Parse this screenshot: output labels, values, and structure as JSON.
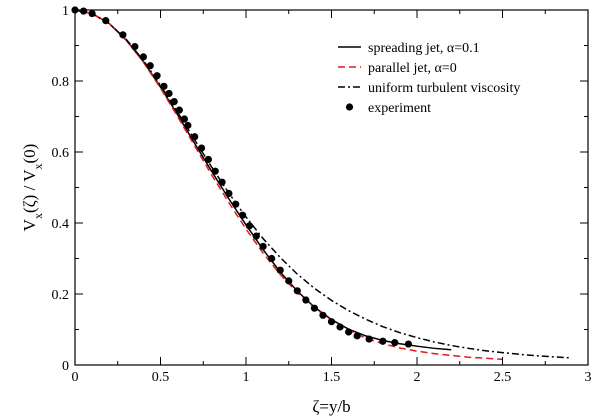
{
  "chart_data": {
    "type": "line",
    "xlabel": "ζ=y/b",
    "ylabel": "V<sub>x</sub>(ζ) / V<sub>x</sub>(0)",
    "xlim": [
      0,
      3
    ],
    "ylim": [
      0,
      1
    ],
    "x_ticks": [
      0,
      0.5,
      1,
      1.5,
      2,
      2.5,
      3
    ],
    "x_tick_labels": [
      "0",
      "0.5",
      "1",
      "1.5",
      "2",
      "2.5",
      "3"
    ],
    "y_ticks": [
      0,
      0.2,
      0.4,
      0.6,
      0.8,
      1
    ],
    "y_tick_labels": [
      "0",
      "0.2",
      "0.4",
      "0.6",
      "0.8",
      "1"
    ],
    "grid": false,
    "legend_position": "top-right",
    "series": [
      {
        "name": "spreading jet, α=0.1",
        "style": "solid",
        "color": "#000000",
        "x": [
          0,
          0.1,
          0.2,
          0.3,
          0.4,
          0.5,
          0.6,
          0.7,
          0.8,
          0.9,
          1.0,
          1.1,
          1.2,
          1.3,
          1.4,
          1.5,
          1.6,
          1.7,
          1.8,
          1.9,
          2.0,
          2.1,
          2.2
        ],
        "y": [
          1.0,
          0.99,
          0.962,
          0.915,
          0.855,
          0.783,
          0.705,
          0.624,
          0.545,
          0.468,
          0.395,
          0.325,
          0.262,
          0.208,
          0.163,
          0.128,
          0.101,
          0.082,
          0.069,
          0.06,
          0.053,
          0.047,
          0.043
        ]
      },
      {
        "name": "parallel jet,    α=0",
        "style": "dashed",
        "color": "#e31a1c",
        "x": [
          0,
          0.1,
          0.2,
          0.3,
          0.4,
          0.5,
          0.6,
          0.7,
          0.8,
          0.9,
          1.0,
          1.1,
          1.2,
          1.3,
          1.4,
          1.5,
          1.6,
          1.7,
          1.8,
          1.9,
          2.0,
          2.1,
          2.2,
          2.3,
          2.4,
          2.5
        ],
        "y": [
          1.0,
          0.99,
          0.962,
          0.915,
          0.853,
          0.78,
          0.7,
          0.617,
          0.535,
          0.457,
          0.383,
          0.315,
          0.255,
          0.204,
          0.161,
          0.126,
          0.098,
          0.076,
          0.06,
          0.048,
          0.039,
          0.032,
          0.027,
          0.022,
          0.019,
          0.016
        ]
      },
      {
        "name": "uniform turbulent viscosity",
        "style": "dash-dot",
        "color": "#000000",
        "x": [
          0,
          0.1,
          0.2,
          0.3,
          0.4,
          0.5,
          0.6,
          0.7,
          0.8,
          0.9,
          1.0,
          1.1,
          1.2,
          1.3,
          1.4,
          1.5,
          1.6,
          1.7,
          1.8,
          1.9,
          2.0,
          2.1,
          2.2,
          2.3,
          2.4,
          2.5,
          2.6,
          2.7,
          2.8,
          2.9
        ],
        "y": [
          1.0,
          0.99,
          0.962,
          0.917,
          0.858,
          0.788,
          0.712,
          0.634,
          0.557,
          0.484,
          0.417,
          0.356,
          0.303,
          0.256,
          0.216,
          0.182,
          0.153,
          0.129,
          0.108,
          0.091,
          0.077,
          0.065,
          0.055,
          0.047,
          0.04,
          0.035,
          0.03,
          0.026,
          0.023,
          0.02
        ]
      },
      {
        "name": "experiment",
        "style": "markers",
        "color": "#000000",
        "x": [
          0.0,
          0.05,
          0.1,
          0.18,
          0.28,
          0.35,
          0.4,
          0.44,
          0.48,
          0.52,
          0.55,
          0.58,
          0.61,
          0.64,
          0.66,
          0.7,
          0.74,
          0.78,
          0.82,
          0.86,
          0.9,
          0.94,
          0.98,
          1.02,
          1.06,
          1.1,
          1.15,
          1.2,
          1.25,
          1.3,
          1.35,
          1.4,
          1.45,
          1.5,
          1.55,
          1.6,
          1.65,
          1.72,
          1.8,
          1.87,
          1.95
        ],
        "y": [
          1.0,
          0.997,
          0.99,
          0.97,
          0.93,
          0.897,
          0.868,
          0.843,
          0.815,
          0.785,
          0.765,
          0.742,
          0.718,
          0.693,
          0.675,
          0.643,
          0.611,
          0.579,
          0.546,
          0.515,
          0.483,
          0.453,
          0.422,
          0.392,
          0.363,
          0.334,
          0.3,
          0.267,
          0.237,
          0.209,
          0.183,
          0.16,
          0.14,
          0.122,
          0.107,
          0.093,
          0.082,
          0.073,
          0.067,
          0.063,
          0.059
        ]
      }
    ]
  }
}
